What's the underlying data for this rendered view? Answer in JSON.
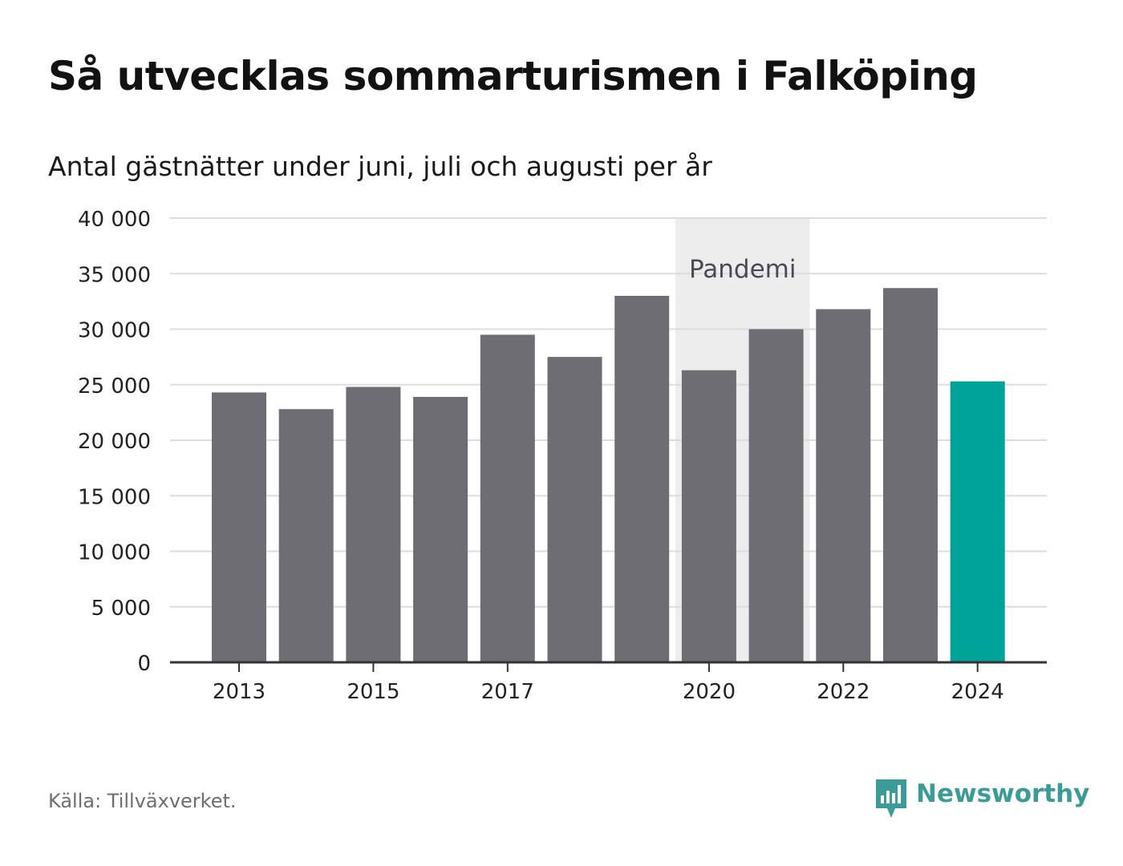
{
  "header": {
    "title": "Så utvecklas sommarturismen i Falköping",
    "subtitle": "Antal gästnätter under juni, juli och augusti per år"
  },
  "footer": {
    "source": "Källa: Tillväxverket.",
    "brand": "Newsworthy"
  },
  "chart_data": {
    "type": "bar",
    "title": "Så utvecklas sommarturismen i Falköping",
    "subtitle": "Antal gästnätter under juni, juli och augusti per år",
    "categories": [
      2013,
      2014,
      2015,
      2016,
      2017,
      2018,
      2019,
      2020,
      2021,
      2022,
      2023,
      2024
    ],
    "x_tick_labels": [
      "2013",
      "2015",
      "2017",
      "2020",
      "2022",
      "2024"
    ],
    "values": [
      24300,
      22800,
      24800,
      23900,
      29500,
      27500,
      33000,
      26300,
      30000,
      31800,
      33700,
      25300
    ],
    "ylim": [
      0,
      40000
    ],
    "y_ticks": [
      0,
      5000,
      10000,
      15000,
      20000,
      25000,
      30000,
      35000,
      40000
    ],
    "y_tick_labels": [
      "0",
      "5 000",
      "10 000",
      "15 000",
      "20 000",
      "25 000",
      "30 000",
      "35 000",
      "40 000"
    ],
    "grid": true,
    "highlight_category": 2024,
    "annotation": {
      "label": "Pandemi",
      "from": 2020,
      "to": 2021
    },
    "colors": {
      "bar": "#6e6d74",
      "highlight": "#00a398",
      "annotation_band": "#ededed",
      "grid": "#dddddd",
      "axis": "#333333"
    }
  },
  "icons": {
    "logo": "newsworthy-bar-chart-icon"
  }
}
